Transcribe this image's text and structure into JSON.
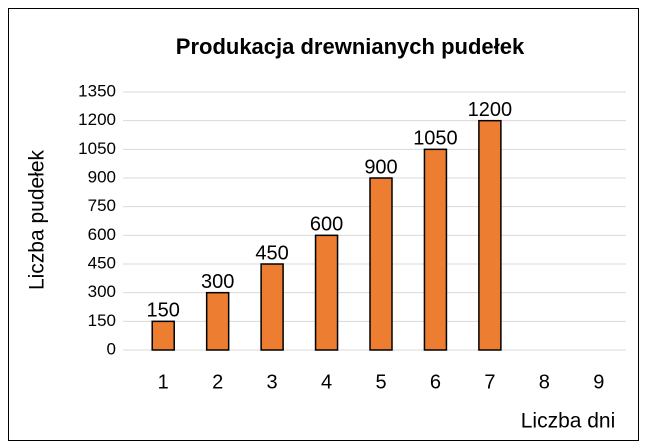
{
  "chart_data": {
    "type": "bar",
    "title": "Produkacja drewnianych pudełek",
    "x_label": "Liczba dni",
    "y_label": "Liczba pudełek",
    "categories": [
      "1",
      "2",
      "3",
      "4",
      "5",
      "6",
      "7",
      "8",
      "9"
    ],
    "values": [
      150,
      300,
      450,
      600,
      900,
      1050,
      1200,
      0,
      0
    ],
    "value_labels": [
      "150",
      "300",
      "450",
      "600",
      "900",
      "1050",
      "1200",
      null,
      null
    ],
    "color": "#ed7d31",
    "ylim": [
      0,
      1350
    ],
    "yticks": [
      0,
      150,
      300,
      450,
      600,
      750,
      900,
      1050,
      1200,
      1350
    ],
    "grid": true
  }
}
